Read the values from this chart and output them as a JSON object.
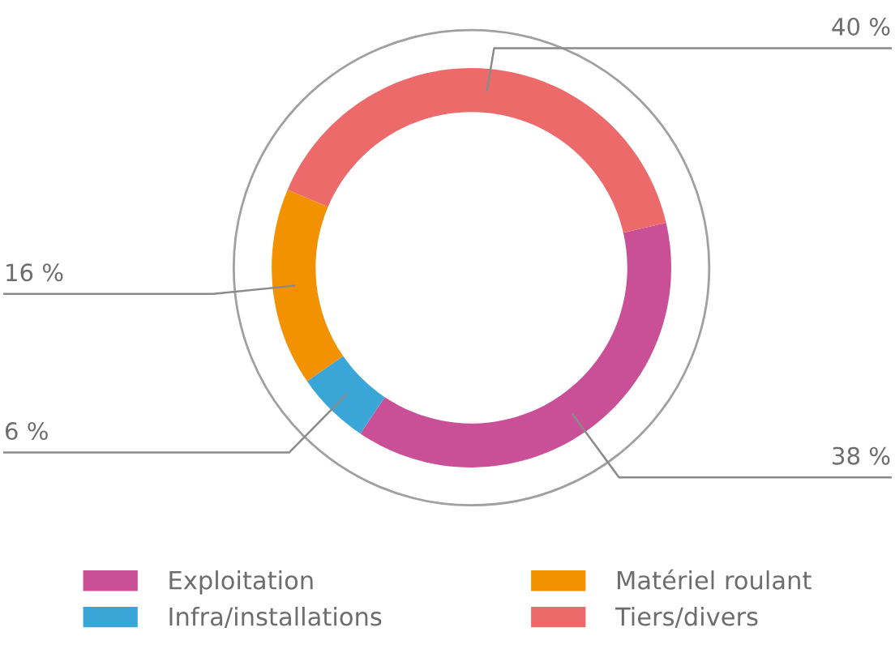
{
  "chart_data": {
    "type": "donut",
    "categories": [
      "Exploitation",
      "Infra/installations",
      "Matériel roulant",
      "Tiers/divers"
    ],
    "values": [
      38,
      6,
      16,
      40
    ],
    "colors": [
      "#c94f96",
      "#3aa6d8",
      "#f39200",
      "#ec6b6a"
    ],
    "value_labels": [
      "38 %",
      "6 %",
      "16 %",
      "40 %"
    ],
    "legend": "bottom"
  }
}
